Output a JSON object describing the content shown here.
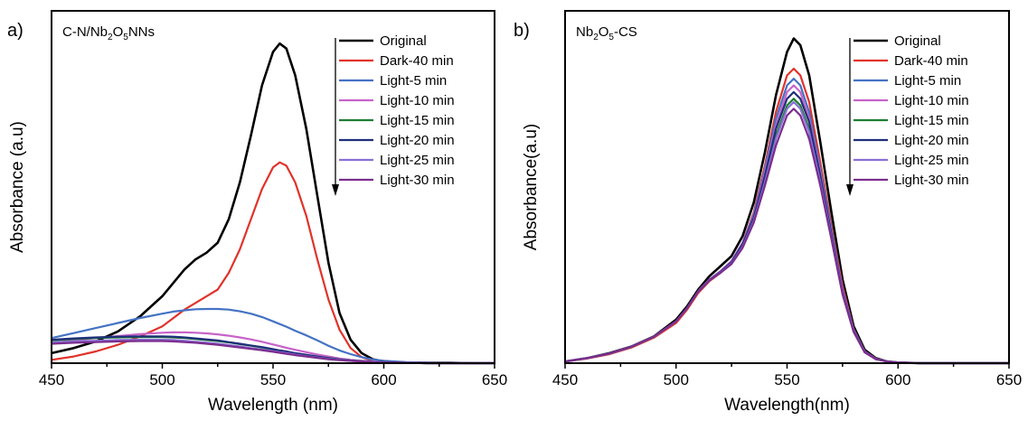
{
  "chart_data": [
    {
      "panel_label": "a)",
      "type": "line",
      "title": {
        "main": "C-N/Nb",
        "sub1": "2",
        "mid": "O",
        "sub2": "5",
        "tail": "NNs"
      },
      "xlabel": "Wavelength (nm)",
      "ylabel": "Absorbance (a.u)",
      "xlim": [
        450,
        650
      ],
      "ylim": [
        0,
        1.0
      ],
      "xticks": [
        "450",
        "500",
        "550",
        "600",
        "650"
      ],
      "legend_position": "top-right",
      "x": [
        450,
        460,
        470,
        480,
        490,
        500,
        505,
        510,
        515,
        520,
        525,
        530,
        535,
        540,
        545,
        550,
        553,
        556,
        560,
        565,
        570,
        575,
        580,
        585,
        590,
        595,
        600,
        610,
        620,
        630,
        640,
        650
      ],
      "series": [
        {
          "name": "Original",
          "color": "#000000",
          "values": [
            0.03,
            0.045,
            0.065,
            0.095,
            0.14,
            0.2,
            0.24,
            0.28,
            0.31,
            0.33,
            0.36,
            0.43,
            0.54,
            0.68,
            0.83,
            0.93,
            0.955,
            0.94,
            0.86,
            0.7,
            0.5,
            0.3,
            0.15,
            0.07,
            0.03,
            0.012,
            0.005,
            0.002,
            0.001,
            0.001,
            0.0,
            0.0
          ]
        },
        {
          "name": "Dark-40 min",
          "color": "#e0332a",
          "values": [
            0.01,
            0.02,
            0.035,
            0.055,
            0.08,
            0.11,
            0.135,
            0.16,
            0.18,
            0.2,
            0.22,
            0.27,
            0.34,
            0.43,
            0.52,
            0.585,
            0.6,
            0.59,
            0.54,
            0.44,
            0.31,
            0.19,
            0.1,
            0.045,
            0.018,
            0.007,
            0.003,
            0.001,
            0.0,
            0.0,
            0.0,
            0.0
          ]
        },
        {
          "name": "Light-5 min",
          "color": "#4472c4",
          "values": [
            0.075,
            0.09,
            0.105,
            0.12,
            0.135,
            0.148,
            0.154,
            0.158,
            0.161,
            0.162,
            0.162,
            0.16,
            0.155,
            0.148,
            0.138,
            0.125,
            0.117,
            0.109,
            0.097,
            0.083,
            0.068,
            0.052,
            0.038,
            0.027,
            0.018,
            0.011,
            0.007,
            0.003,
            0.001,
            0.0,
            0.0,
            0.0
          ]
        },
        {
          "name": "Light-10 min",
          "color": "#c763c9",
          "values": [
            0.06,
            0.068,
            0.075,
            0.081,
            0.087,
            0.091,
            0.092,
            0.092,
            0.091,
            0.089,
            0.086,
            0.082,
            0.077,
            0.071,
            0.064,
            0.056,
            0.051,
            0.046,
            0.04,
            0.033,
            0.026,
            0.02,
            0.014,
            0.01,
            0.007,
            0.005,
            0.003,
            0.001,
            0.0,
            0.0,
            0.0,
            0.0
          ]
        },
        {
          "name": "Light-15 min",
          "color": "#1e7d32",
          "values": [
            0.068,
            0.072,
            0.075,
            0.077,
            0.078,
            0.078,
            0.077,
            0.075,
            0.072,
            0.069,
            0.066,
            0.062,
            0.057,
            0.052,
            0.047,
            0.041,
            0.037,
            0.034,
            0.029,
            0.024,
            0.019,
            0.015,
            0.011,
            0.008,
            0.006,
            0.004,
            0.003,
            0.001,
            0.0,
            0.0,
            0.0,
            0.0
          ]
        },
        {
          "name": "Light-20 min",
          "color": "#1f2f7a",
          "values": [
            0.07,
            0.074,
            0.077,
            0.079,
            0.08,
            0.08,
            0.079,
            0.077,
            0.074,
            0.071,
            0.068,
            0.063,
            0.058,
            0.053,
            0.048,
            0.042,
            0.038,
            0.035,
            0.03,
            0.025,
            0.02,
            0.015,
            0.011,
            0.008,
            0.006,
            0.004,
            0.003,
            0.001,
            0.0,
            0.0,
            0.0,
            0.0
          ]
        },
        {
          "name": "Light-25 min",
          "color": "#8a6fd6",
          "values": [
            0.062,
            0.065,
            0.067,
            0.069,
            0.07,
            0.07,
            0.069,
            0.067,
            0.064,
            0.061,
            0.058,
            0.054,
            0.05,
            0.045,
            0.041,
            0.036,
            0.033,
            0.03,
            0.026,
            0.021,
            0.017,
            0.013,
            0.01,
            0.007,
            0.005,
            0.004,
            0.002,
            0.001,
            0.0,
            0.0,
            0.0,
            0.0
          ]
        },
        {
          "name": "Light-30 min",
          "color": "#7b2d8e",
          "values": [
            0.058,
            0.061,
            0.063,
            0.065,
            0.066,
            0.066,
            0.065,
            0.063,
            0.061,
            0.058,
            0.055,
            0.051,
            0.047,
            0.043,
            0.039,
            0.034,
            0.031,
            0.028,
            0.024,
            0.02,
            0.016,
            0.012,
            0.009,
            0.007,
            0.005,
            0.003,
            0.002,
            0.001,
            0.0,
            0.0,
            0.0,
            0.0
          ]
        }
      ]
    },
    {
      "panel_label": "b)",
      "type": "line",
      "title": {
        "main": "Nb",
        "sub1": "2",
        "mid": "O",
        "sub2": "5",
        "tail": "-CS"
      },
      "xlabel": "Wavelength(nm)",
      "ylabel": "Absorbance(a.u)",
      "xlim": [
        450,
        650
      ],
      "ylim": [
        0,
        1.0
      ],
      "xticks": [
        "450",
        "500",
        "550",
        "600",
        "650"
      ],
      "legend_position": "top-right",
      "x": [
        450,
        460,
        470,
        480,
        490,
        500,
        505,
        510,
        515,
        520,
        525,
        530,
        535,
        540,
        545,
        550,
        553,
        556,
        560,
        565,
        570,
        575,
        580,
        585,
        590,
        595,
        600,
        610,
        620,
        630,
        640,
        650
      ],
      "series": [
        {
          "name": "Original",
          "color": "#000000",
          "values": [
            0.005,
            0.015,
            0.03,
            0.05,
            0.08,
            0.13,
            0.17,
            0.22,
            0.26,
            0.29,
            0.32,
            0.38,
            0.48,
            0.63,
            0.8,
            0.93,
            0.97,
            0.95,
            0.86,
            0.66,
            0.45,
            0.25,
            0.11,
            0.04,
            0.015,
            0.005,
            0.002,
            0.0,
            0.0,
            0.0,
            0.0,
            0.0
          ]
        },
        {
          "name": "Dark-40 min",
          "color": "#e0332a",
          "values": [
            0.005,
            0.014,
            0.027,
            0.047,
            0.076,
            0.12,
            0.16,
            0.21,
            0.245,
            0.27,
            0.3,
            0.36,
            0.45,
            0.59,
            0.75,
            0.86,
            0.88,
            0.86,
            0.78,
            0.6,
            0.41,
            0.23,
            0.1,
            0.035,
            0.013,
            0.005,
            0.002,
            0.0,
            0.0,
            0.0,
            0.0,
            0.0
          ]
        },
        {
          "name": "Light-5 min",
          "color": "#4472c4",
          "values": [
            0.005,
            0.015,
            0.029,
            0.049,
            0.079,
            0.125,
            0.165,
            0.215,
            0.25,
            0.275,
            0.305,
            0.36,
            0.445,
            0.58,
            0.73,
            0.83,
            0.85,
            0.83,
            0.75,
            0.58,
            0.4,
            0.22,
            0.1,
            0.035,
            0.013,
            0.005,
            0.002,
            0.0,
            0.0,
            0.0,
            0.0,
            0.0
          ]
        },
        {
          "name": "Light-10 min",
          "color": "#c763c9",
          "values": [
            0.005,
            0.015,
            0.029,
            0.049,
            0.079,
            0.125,
            0.165,
            0.215,
            0.25,
            0.275,
            0.305,
            0.36,
            0.44,
            0.57,
            0.71,
            0.81,
            0.83,
            0.81,
            0.73,
            0.57,
            0.39,
            0.22,
            0.1,
            0.035,
            0.013,
            0.005,
            0.002,
            0.0,
            0.0,
            0.0,
            0.0,
            0.0
          ]
        },
        {
          "name": "Light-15 min",
          "color": "#1e7d32",
          "values": [
            0.005,
            0.015,
            0.029,
            0.049,
            0.079,
            0.125,
            0.165,
            0.214,
            0.248,
            0.272,
            0.3,
            0.352,
            0.43,
            0.55,
            0.68,
            0.77,
            0.79,
            0.77,
            0.7,
            0.55,
            0.38,
            0.21,
            0.095,
            0.033,
            0.012,
            0.005,
            0.002,
            0.0,
            0.0,
            0.0,
            0.0,
            0.0
          ]
        },
        {
          "name": "Light-20 min",
          "color": "#1f2f7a",
          "values": [
            0.005,
            0.015,
            0.029,
            0.049,
            0.079,
            0.125,
            0.165,
            0.214,
            0.248,
            0.273,
            0.302,
            0.356,
            0.435,
            0.56,
            0.7,
            0.79,
            0.81,
            0.79,
            0.72,
            0.56,
            0.385,
            0.215,
            0.097,
            0.034,
            0.012,
            0.005,
            0.002,
            0.0,
            0.0,
            0.0,
            0.0,
            0.0
          ]
        },
        {
          "name": "Light-25 min",
          "color": "#8a6fd6",
          "values": [
            0.005,
            0.015,
            0.029,
            0.049,
            0.079,
            0.125,
            0.165,
            0.214,
            0.247,
            0.271,
            0.298,
            0.348,
            0.425,
            0.54,
            0.67,
            0.76,
            0.78,
            0.76,
            0.69,
            0.54,
            0.375,
            0.21,
            0.094,
            0.033,
            0.012,
            0.005,
            0.002,
            0.0,
            0.0,
            0.0,
            0.0,
            0.0
          ]
        },
        {
          "name": "Light-30 min",
          "color": "#7b2d8e",
          "values": [
            0.005,
            0.015,
            0.029,
            0.049,
            0.079,
            0.125,
            0.165,
            0.214,
            0.247,
            0.27,
            0.296,
            0.345,
            0.42,
            0.53,
            0.65,
            0.74,
            0.76,
            0.74,
            0.67,
            0.53,
            0.37,
            0.205,
            0.093,
            0.032,
            0.012,
            0.005,
            0.002,
            0.0,
            0.0,
            0.0,
            0.0,
            0.0
          ]
        }
      ]
    }
  ]
}
